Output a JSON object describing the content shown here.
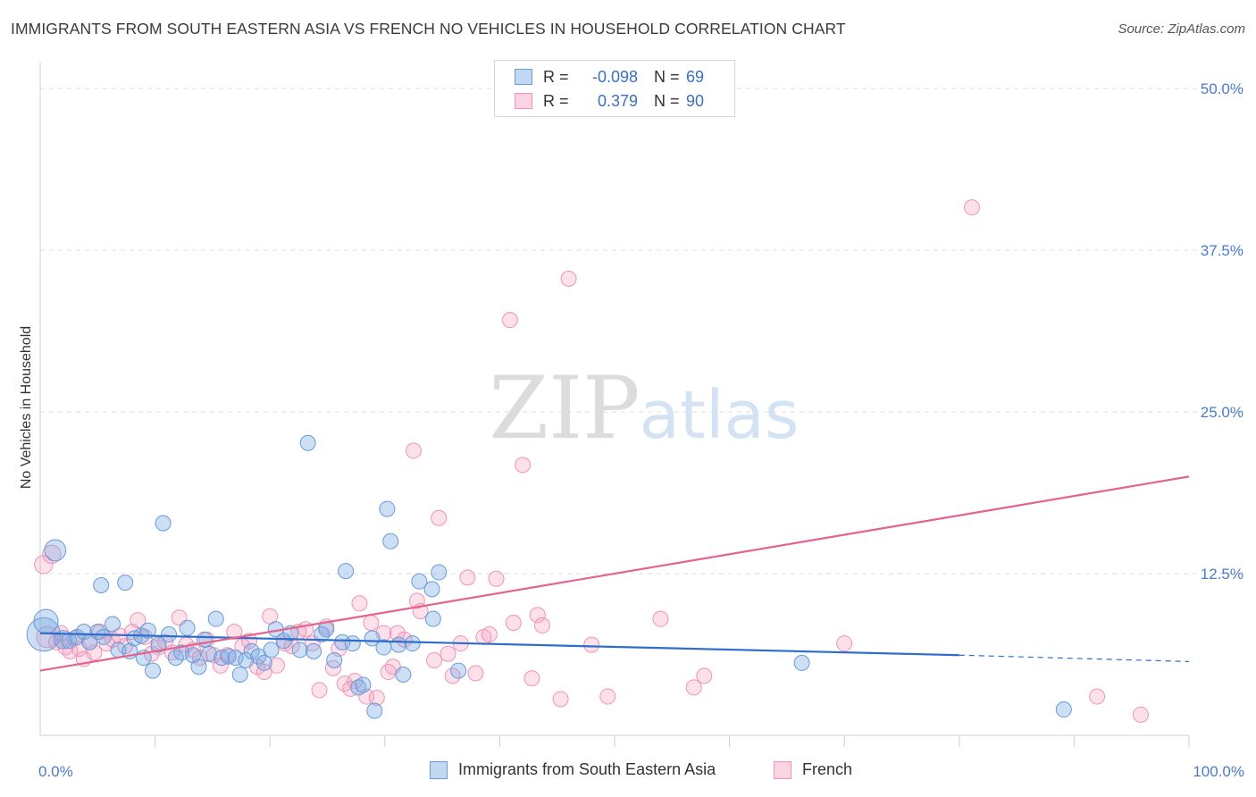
{
  "header": {
    "title": "IMMIGRANTS FROM SOUTH EASTERN ASIA VS FRENCH NO VEHICLES IN HOUSEHOLD CORRELATION CHART",
    "source": "Source: ZipAtlas.com"
  },
  "watermark": {
    "zip": "ZIP",
    "atlas": "atlas"
  },
  "legend": {
    "rows": [
      {
        "r_label": "R =",
        "r_value": "-0.098",
        "n_label": "N =",
        "n_value": "69",
        "color": "#8fb6ea"
      },
      {
        "r_label": "R =",
        "r_value": "0.379",
        "n_label": "N =",
        "n_value": "90",
        "color": "#f0a0bd"
      }
    ]
  },
  "bottom_legend": {
    "series_a": "Immigrants from South Eastern Asia",
    "series_b": "French"
  },
  "colors": {
    "blue_fill": "rgba(120,170,230,0.38)",
    "blue_stroke": "#6a9ad8",
    "blue_line": "#2e6ecb",
    "pink_fill": "rgba(245,160,190,0.32)",
    "pink_stroke": "#ee93b4",
    "pink_line": "#e4638f",
    "tick_text": "#4a7cc7",
    "grid": "#dddddd"
  },
  "chart_data": {
    "type": "scatter",
    "xlabel": "",
    "ylabel": "No Vehicles in Household",
    "xlim": [
      0,
      100
    ],
    "ylim": [
      0,
      52
    ],
    "x_tick_labels": [
      {
        "value": 0,
        "label": "0.0%"
      },
      {
        "value": 100,
        "label": "100.0%"
      }
    ],
    "y_ticks": [
      {
        "value": 12.5,
        "label": "12.5%"
      },
      {
        "value": 25,
        "label": "25.0%"
      },
      {
        "value": 37.5,
        "label": "37.5%"
      },
      {
        "value": 50,
        "label": "50.0%"
      }
    ],
    "x_minor_ticks": [
      10,
      20,
      30,
      40,
      50,
      60,
      70,
      80,
      90,
      100
    ],
    "grid": true,
    "series": [
      {
        "name": "Immigrants from South Eastern Asia",
        "color": "blue",
        "trend": {
          "x0": 0,
          "y0": 7.9,
          "x1": 80,
          "y1": 6.2,
          "dashed_to_x": 100,
          "dashed_to_y": 5.7
        },
        "points": [
          [
            0.3,
            7.8,
            2.2
          ],
          [
            0.5,
            8.8,
            1.6
          ],
          [
            1.3,
            14.3,
            1.4
          ],
          [
            2.0,
            7.4,
            1.2
          ],
          [
            2.5,
            7.3,
            1.0
          ],
          [
            3.2,
            7.6,
            1.0
          ],
          [
            3.8,
            8.0,
            1.0
          ],
          [
            4.3,
            7.2,
            1.0
          ],
          [
            5.0,
            8.0,
            1.0
          ],
          [
            5.5,
            7.6,
            1.0
          ],
          [
            5.3,
            11.6,
            1.0
          ],
          [
            6.3,
            8.6,
            1.0
          ],
          [
            6.8,
            6.6,
            1.0
          ],
          [
            7.4,
            11.8,
            1.0
          ],
          [
            7.8,
            6.5,
            1.0
          ],
          [
            8.2,
            7.5,
            1.0
          ],
          [
            8.8,
            7.7,
            1.0
          ],
          [
            9.0,
            6.0,
            1.0
          ],
          [
            9.4,
            8.1,
            1.0
          ],
          [
            9.8,
            5.0,
            1.0
          ],
          [
            10.3,
            7.0,
            1.0
          ],
          [
            10.7,
            16.4,
            1.0
          ],
          [
            11.2,
            7.8,
            1.0
          ],
          [
            11.8,
            6.0,
            1.0
          ],
          [
            12.3,
            6.4,
            1.0
          ],
          [
            12.8,
            8.3,
            1.0
          ],
          [
            13.3,
            6.2,
            1.0
          ],
          [
            13.8,
            5.3,
            1.0
          ],
          [
            14.3,
            7.4,
            1.0
          ],
          [
            14.7,
            6.3,
            1.0
          ],
          [
            15.3,
            9.0,
            1.0
          ],
          [
            15.8,
            6.0,
            1.0
          ],
          [
            16.4,
            6.1,
            1.0
          ],
          [
            17.0,
            6.0,
            1.0
          ],
          [
            17.4,
            4.7,
            1.0
          ],
          [
            17.9,
            5.8,
            1.0
          ],
          [
            18.4,
            6.5,
            1.0
          ],
          [
            19.0,
            6.1,
            1.0
          ],
          [
            19.5,
            5.6,
            1.0
          ],
          [
            20.1,
            6.6,
            1.0
          ],
          [
            20.5,
            8.2,
            1.0
          ],
          [
            21.2,
            7.3,
            1.0
          ],
          [
            21.8,
            7.9,
            1.0
          ],
          [
            22.6,
            6.6,
            1.0
          ],
          [
            23.3,
            22.6,
            1.0
          ],
          [
            23.8,
            6.5,
            1.0
          ],
          [
            24.5,
            7.8,
            1.0
          ],
          [
            24.9,
            8.2,
            1.0
          ],
          [
            25.6,
            5.8,
            1.0
          ],
          [
            26.3,
            7.2,
            1.0
          ],
          [
            26.6,
            12.7,
            1.0
          ],
          [
            27.2,
            7.1,
            1.0
          ],
          [
            27.7,
            3.7,
            1.0
          ],
          [
            28.1,
            3.9,
            1.0
          ],
          [
            28.9,
            7.5,
            1.0
          ],
          [
            29.1,
            1.9,
            1.0
          ],
          [
            29.9,
            6.8,
            1.0
          ],
          [
            30.2,
            17.5,
            1.0
          ],
          [
            30.5,
            15.0,
            1.0
          ],
          [
            31.2,
            7.0,
            1.0
          ],
          [
            31.6,
            4.7,
            1.0
          ],
          [
            32.4,
            7.1,
            1.0
          ],
          [
            33.0,
            11.9,
            1.0
          ],
          [
            34.1,
            11.3,
            1.0
          ],
          [
            34.7,
            12.6,
            1.0
          ],
          [
            34.2,
            9.0,
            1.0
          ],
          [
            36.4,
            5.0,
            1.0
          ],
          [
            66.3,
            5.6,
            1.0
          ],
          [
            89.1,
            2.0,
            1.0
          ]
        ]
      },
      {
        "name": "French",
        "color": "pink",
        "trend": {
          "x0": 0,
          "y0": 5.0,
          "x1": 100,
          "y1": 20.0
        },
        "points": [
          [
            0.3,
            13.2,
            1.2
          ],
          [
            0.6,
            7.6,
            1.4
          ],
          [
            1.0,
            14.0,
            1.2
          ],
          [
            1.4,
            7.2,
            1.0
          ],
          [
            1.8,
            7.9,
            1.0
          ],
          [
            2.2,
            6.8,
            1.0
          ],
          [
            2.6,
            6.5,
            1.0
          ],
          [
            3.0,
            7.5,
            1.0
          ],
          [
            3.4,
            6.7,
            1.0
          ],
          [
            3.8,
            5.9,
            1.0
          ],
          [
            4.3,
            7.2,
            1.0
          ],
          [
            4.7,
            6.4,
            1.0
          ],
          [
            5.2,
            8.0,
            1.0
          ],
          [
            5.8,
            7.1,
            1.0
          ],
          [
            6.3,
            7.4,
            1.0
          ],
          [
            6.9,
            7.7,
            1.0
          ],
          [
            7.4,
            6.9,
            1.0
          ],
          [
            8.0,
            8.0,
            1.0
          ],
          [
            8.5,
            8.9,
            1.0
          ],
          [
            9.1,
            7.6,
            1.0
          ],
          [
            9.7,
            6.3,
            1.0
          ],
          [
            10.3,
            6.8,
            1.0
          ],
          [
            10.9,
            7.2,
            1.0
          ],
          [
            11.5,
            6.4,
            1.0
          ],
          [
            12.1,
            9.1,
            1.0
          ],
          [
            12.7,
            7.0,
            1.0
          ],
          [
            13.3,
            6.6,
            1.0
          ],
          [
            13.9,
            6.0,
            1.0
          ],
          [
            14.5,
            7.4,
            1.0
          ],
          [
            15.1,
            6.2,
            1.0
          ],
          [
            15.7,
            5.4,
            1.0
          ],
          [
            16.3,
            6.2,
            1.0
          ],
          [
            16.9,
            8.0,
            1.0
          ],
          [
            17.6,
            6.9,
            1.0
          ],
          [
            18.2,
            7.3,
            1.0
          ],
          [
            18.9,
            5.3,
            1.0
          ],
          [
            19.5,
            4.9,
            1.0
          ],
          [
            20.0,
            9.2,
            1.0
          ],
          [
            20.6,
            5.4,
            1.0
          ],
          [
            21.3,
            7.1,
            1.0
          ],
          [
            21.9,
            6.9,
            1.0
          ],
          [
            22.5,
            8.0,
            1.0
          ],
          [
            23.1,
            8.2,
            1.0
          ],
          [
            23.7,
            7.1,
            1.0
          ],
          [
            24.3,
            3.5,
            1.0
          ],
          [
            24.9,
            8.4,
            1.0
          ],
          [
            25.5,
            5.2,
            1.0
          ],
          [
            26.0,
            6.7,
            1.0
          ],
          [
            26.5,
            4.0,
            1.0
          ],
          [
            27.0,
            3.6,
            1.0
          ],
          [
            27.4,
            4.2,
            1.0
          ],
          [
            27.8,
            10.2,
            1.0
          ],
          [
            28.4,
            3.0,
            1.0
          ],
          [
            28.8,
            8.7,
            1.0
          ],
          [
            29.3,
            2.9,
            1.0
          ],
          [
            29.9,
            7.9,
            1.0
          ],
          [
            30.3,
            4.9,
            1.0
          ],
          [
            30.7,
            5.3,
            1.0
          ],
          [
            31.1,
            7.9,
            1.0
          ],
          [
            31.7,
            7.4,
            1.0
          ],
          [
            32.5,
            22.0,
            1.0
          ],
          [
            32.8,
            10.4,
            1.0
          ],
          [
            33.1,
            9.6,
            1.0
          ],
          [
            34.7,
            16.8,
            1.0
          ],
          [
            34.3,
            5.8,
            1.0
          ],
          [
            35.5,
            6.3,
            1.0
          ],
          [
            35.9,
            4.6,
            1.0
          ],
          [
            36.6,
            7.1,
            1.0
          ],
          [
            37.2,
            12.2,
            1.0
          ],
          [
            37.9,
            4.8,
            1.0
          ],
          [
            38.6,
            7.6,
            1.0
          ],
          [
            39.1,
            7.8,
            1.0
          ],
          [
            39.7,
            12.1,
            1.0
          ],
          [
            40.9,
            32.1,
            1.0
          ],
          [
            41.2,
            8.7,
            1.0
          ],
          [
            42.0,
            20.9,
            1.0
          ],
          [
            42.8,
            4.4,
            1.0
          ],
          [
            43.3,
            9.3,
            1.0
          ],
          [
            43.7,
            8.5,
            1.0
          ],
          [
            46.0,
            35.3,
            1.0
          ],
          [
            45.3,
            2.8,
            1.0
          ],
          [
            48.0,
            7.0,
            1.0
          ],
          [
            49.4,
            3.0,
            1.0
          ],
          [
            54.0,
            9.0,
            1.0
          ],
          [
            56.9,
            3.7,
            1.0
          ],
          [
            57.8,
            4.6,
            1.0
          ],
          [
            70.0,
            7.1,
            1.0
          ],
          [
            81.1,
            40.8,
            1.0
          ],
          [
            92.0,
            3.0,
            1.0
          ],
          [
            95.8,
            1.6,
            1.0
          ]
        ]
      }
    ]
  }
}
